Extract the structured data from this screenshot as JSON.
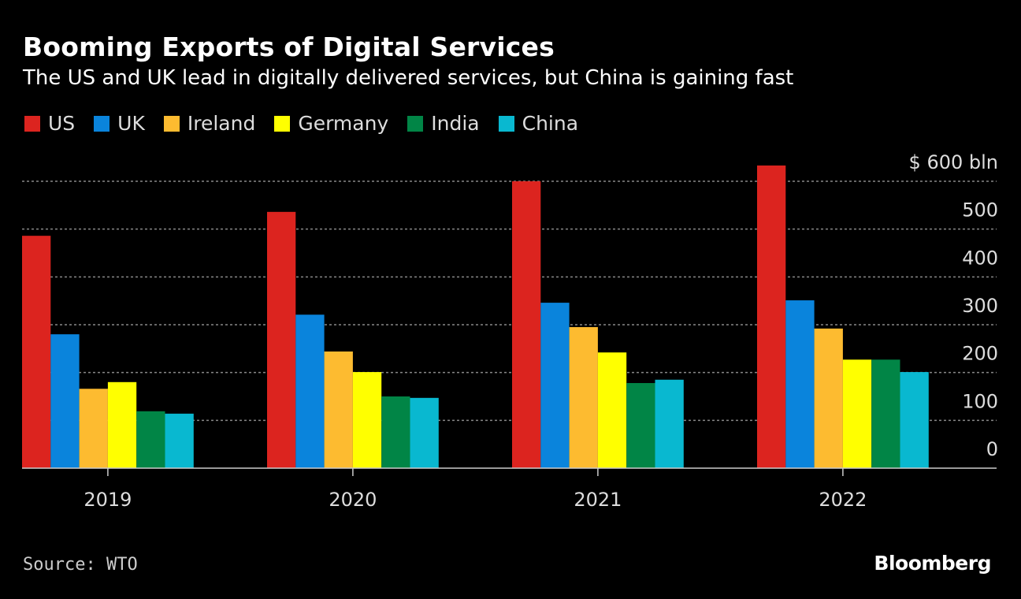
{
  "chart_data": {
    "type": "bar",
    "title": "Booming Exports of Digital Services",
    "subtitle": "The US and UK lead in digitally delivered services, but China is gaining fast",
    "categories": [
      "2019",
      "2020",
      "2021",
      "2022"
    ],
    "series": [
      {
        "name": "US",
        "color": "#dc241f",
        "values": [
          486,
          536,
          600,
          633
        ]
      },
      {
        "name": "UK",
        "color": "#0a84dc",
        "values": [
          280,
          321,
          346,
          351
        ]
      },
      {
        "name": "Ireland",
        "color": "#fdbb30",
        "values": [
          166,
          244,
          295,
          292
        ]
      },
      {
        "name": "Germany",
        "color": "#ffff00",
        "values": [
          180,
          201,
          242,
          227
        ]
      },
      {
        "name": "India",
        "color": "#018546",
        "values": [
          119,
          150,
          178,
          227
        ]
      },
      {
        "name": "China",
        "color": "#09b8d0",
        "values": [
          114,
          147,
          185,
          201
        ]
      }
    ],
    "yticks": [
      0,
      100,
      200,
      300,
      400,
      500,
      600
    ],
    "ytick_labels": [
      "0",
      "100",
      "200",
      "300",
      "400",
      "500",
      "$ 600  bln"
    ],
    "ylim": [
      0,
      600
    ],
    "xlabel": "",
    "ylabel": "",
    "grid": true,
    "legend_position": "top-left"
  },
  "source": "Source: WTO",
  "logo": "Bloomberg"
}
